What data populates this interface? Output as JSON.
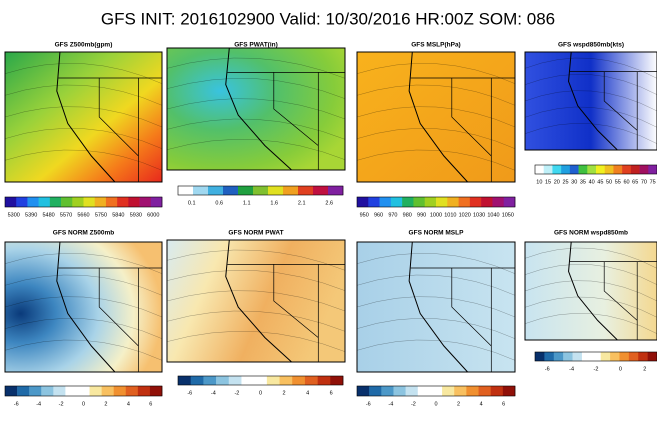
{
  "title": "GFS INIT: 2016102900  Valid: 10/30/2016  HR:00Z  SOM: 086",
  "panels": [
    {
      "title": "GFS Z500mb(gpm)",
      "colorbar": [
        "5300",
        "5390",
        "5480",
        "5570",
        "5660",
        "5750",
        "5840",
        "5930",
        "6000"
      ]
    },
    {
      "title": "GFS PWAT(in)",
      "colorbar": [
        "0.1",
        "0.6",
        "1.1",
        "1.6",
        "2.1",
        "2.6"
      ]
    },
    {
      "title": "GFS MSLP(hPa)",
      "colorbar": [
        "950",
        "960",
        "970",
        "980",
        "990",
        "1000",
        "1010",
        "1020",
        "1030",
        "1040",
        "1050"
      ]
    },
    {
      "title": "GFS wspd850mb(kts)",
      "colorbar": [
        "10",
        "15",
        "20",
        "25",
        "30",
        "35",
        "40",
        "45",
        "50",
        "55",
        "60",
        "65",
        "70",
        "75"
      ]
    },
    {
      "title": "GFS NORM Z500mb",
      "colorbar": [
        "-6",
        "-4",
        "-2",
        "0",
        "2",
        "4",
        "6"
      ]
    },
    {
      "title": "GFS NORM PWAT",
      "colorbar": [
        "-6",
        "-4",
        "-2",
        "0",
        "2",
        "4",
        "6"
      ]
    },
    {
      "title": "GFS NORM MSLP",
      "colorbar": [
        "-6",
        "-4",
        "-2",
        "0",
        "2",
        "4",
        "6"
      ]
    },
    {
      "title": "GFS NORM wspd850mb",
      "colorbar": [
        "-6",
        "-4",
        "-2",
        "0",
        "2"
      ]
    }
  ]
}
